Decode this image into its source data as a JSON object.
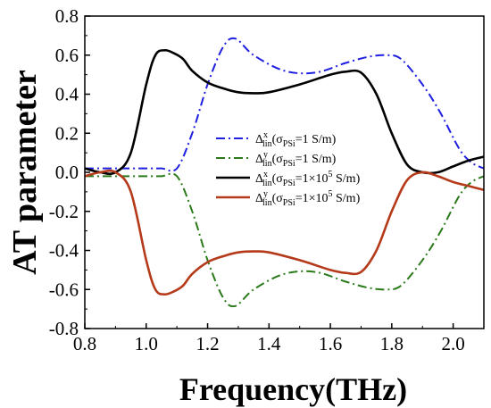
{
  "chart_data": {
    "type": "line",
    "xlabel": "Frequency(THz)",
    "ylabel": "AT parameter",
    "xlim": [
      0.8,
      2.1
    ],
    "ylim": [
      -0.8,
      0.8
    ],
    "x_ticks": [
      "0.8",
      "1.0",
      "1.2",
      "1.4",
      "1.6",
      "1.8",
      "2.0"
    ],
    "y_ticks": [
      "0.8",
      "0.6",
      "0.4",
      "0.2",
      "0.0",
      "-0.2",
      "-0.4",
      "-0.6",
      "-0.8"
    ],
    "grid": false,
    "legend_position": "center-right",
    "series": [
      {
        "legend": {
          "sym": "Δ",
          "sup": "x",
          "sub": "lin",
          "sigma_sub": "PSi",
          "value": "=1 S/m"
        },
        "color": "#1f1fe0",
        "dash": "dashdot",
        "x": [
          0.8,
          0.9,
          1.0,
          1.05,
          1.1,
          1.15,
          1.2,
          1.25,
          1.29,
          1.35,
          1.45,
          1.55,
          1.65,
          1.72,
          1.78,
          1.83,
          1.9,
          1.96,
          2.02,
          2.06,
          2.1
        ],
        "y": [
          0.02,
          0.02,
          0.02,
          0.02,
          0.02,
          0.2,
          0.45,
          0.64,
          0.685,
          0.6,
          0.52,
          0.51,
          0.56,
          0.59,
          0.6,
          0.58,
          0.45,
          0.3,
          0.12,
          0.05,
          0.02
        ]
      },
      {
        "legend": {
          "sym": "Δ",
          "sup": "y",
          "sub": "lin",
          "sigma_sub": "PSi",
          "value": "=1 S/m"
        },
        "color": "#2a7a1a",
        "dash": "dashdot",
        "x": [
          0.8,
          0.9,
          1.0,
          1.05,
          1.1,
          1.15,
          1.2,
          1.25,
          1.29,
          1.35,
          1.45,
          1.55,
          1.65,
          1.72,
          1.78,
          1.83,
          1.9,
          1.96,
          2.02,
          2.06,
          2.1
        ],
        "y": [
          -0.02,
          -0.02,
          -0.02,
          -0.02,
          -0.02,
          -0.2,
          -0.45,
          -0.64,
          -0.685,
          -0.6,
          -0.52,
          -0.51,
          -0.56,
          -0.59,
          -0.6,
          -0.58,
          -0.45,
          -0.3,
          -0.12,
          -0.05,
          -0.02
        ]
      },
      {
        "legend": {
          "sym": "Δ",
          "sup": "x",
          "sub": "lin",
          "sigma_sub": "PSi",
          "value": "=1×10",
          "exp": "5",
          "unit": " S/m"
        },
        "color": "#000000",
        "dash": "solid",
        "x": [
          0.8,
          0.85,
          0.9,
          0.95,
          1.0,
          1.03,
          1.06,
          1.09,
          1.12,
          1.15,
          1.2,
          1.25,
          1.3,
          1.35,
          1.4,
          1.5,
          1.6,
          1.65,
          1.7,
          1.75,
          1.8,
          1.85,
          1.9,
          1.95,
          2.0,
          2.05,
          2.1
        ],
        "y": [
          0.02,
          0.0,
          0.0,
          0.1,
          0.45,
          0.6,
          0.625,
          0.61,
          0.58,
          0.52,
          0.46,
          0.43,
          0.41,
          0.405,
          0.41,
          0.45,
          0.5,
          0.515,
          0.51,
          0.4,
          0.2,
          0.04,
          0.0,
          0.0,
          0.03,
          0.06,
          0.08
        ]
      },
      {
        "legend": {
          "sym": "Δ",
          "sup": "y",
          "sub": "lin",
          "sigma_sub": "PSi",
          "value": "=1×10",
          "exp": "5",
          "unit": " S/m"
        },
        "color": "#b53a1a",
        "dash": "solid",
        "x": [
          0.8,
          0.85,
          0.9,
          0.95,
          1.0,
          1.03,
          1.06,
          1.09,
          1.12,
          1.15,
          1.2,
          1.25,
          1.3,
          1.35,
          1.4,
          1.5,
          1.6,
          1.65,
          1.7,
          1.75,
          1.8,
          1.85,
          1.9,
          1.95,
          2.0,
          2.05,
          2.1
        ],
        "y": [
          -0.02,
          0.0,
          0.0,
          -0.1,
          -0.45,
          -0.6,
          -0.625,
          -0.61,
          -0.58,
          -0.52,
          -0.46,
          -0.43,
          -0.41,
          -0.405,
          -0.41,
          -0.45,
          -0.5,
          -0.515,
          -0.51,
          -0.4,
          -0.2,
          -0.04,
          0.0,
          -0.02,
          -0.05,
          -0.07,
          -0.09
        ]
      }
    ]
  }
}
